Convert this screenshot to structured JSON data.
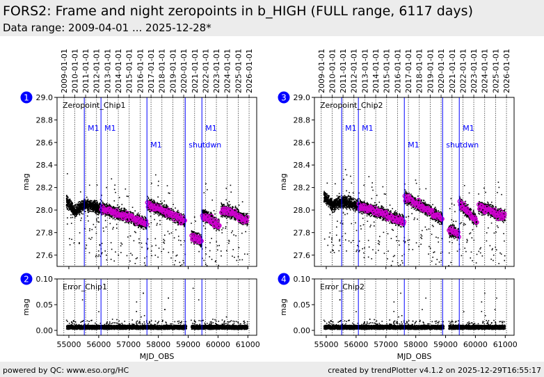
{
  "header": {
    "title": "FORS2: Frame and night zeropoints in b_HIGH (FULL range, 6117 days)",
    "subtitle": "Data range: 2009-04-01 ... 2025-12-28*"
  },
  "footer": {
    "left": "powered by QC: www.eso.org/HC",
    "right": "created by trendPlotter v4.1.2 on 2025-12-29T16:55:17"
  },
  "colors": {
    "frame": "#000000",
    "night": "#cc00cc",
    "event": "#0000ff",
    "badge": "#0000ff"
  },
  "date_ticks": [
    "2009-01-01",
    "2010-01-01",
    "2011-01-01",
    "2012-01-01",
    "2013-01-01",
    "2014-01-01",
    "2015-01-01",
    "2016-01-01",
    "2017-01-01",
    "2018-01-01",
    "2019-01-01",
    "2020-01-01",
    "2021-01-01",
    "2022-01-01",
    "2023-01-01",
    "2024-01-01",
    "2025-01-01",
    "2026-01-01"
  ],
  "events": [
    {
      "mjd": 55517,
      "label": "M1",
      "row": 0
    },
    {
      "mjd": 56077,
      "label": "M1",
      "row": 0
    },
    {
      "mjd": 57617,
      "label": "M1",
      "row": 1
    },
    {
      "mjd": 58900,
      "label": "shutdwn",
      "row": 1
    },
    {
      "mjd": 59459,
      "label": "M1",
      "row": 0
    }
  ],
  "chart_data": [
    {
      "id": "1",
      "type": "scatter",
      "label": "Zeropoint_Chip1",
      "ylabel": "mag",
      "xlim": [
        54604,
        61296
      ],
      "ylim": [
        27.5,
        29.0
      ],
      "yticks": [
        "27.6",
        "27.8",
        "28.0",
        "28.2",
        "28.4",
        "28.6",
        "28.8",
        "29.0"
      ],
      "trend": [
        [
          54920,
          55200,
          28.08,
          27.99
        ],
        [
          55200,
          55517,
          27.98,
          28.05
        ],
        [
          55517,
          56077,
          28.05,
          28.02
        ],
        [
          56077,
          57617,
          28.02,
          27.88
        ],
        [
          57617,
          58900,
          28.06,
          27.9
        ],
        [
          59100,
          59459,
          27.77,
          27.73
        ],
        [
          59459,
          60050,
          27.97,
          27.86
        ],
        [
          60100,
          60700,
          28.0,
          27.96
        ],
        [
          60700,
          61000,
          27.93,
          27.92
        ]
      ],
      "night_from": 56077
    },
    {
      "id": "2",
      "type": "scatter",
      "label": "Error_Chip1",
      "ylabel": "mag",
      "xlabel": "MJD_OBS",
      "xlim": [
        54604,
        61296
      ],
      "ylim": [
        -0.0095,
        0.1
      ],
      "yticks": [
        "0.00",
        "0.05",
        "0.10"
      ],
      "xticks": [
        "55000",
        "56000",
        "57000",
        "58000",
        "59000",
        "60000",
        "61000"
      ],
      "trend": [
        [
          54920,
          58950,
          0.005,
          0.006
        ],
        [
          59100,
          61000,
          0.005,
          0.006
        ]
      ]
    },
    {
      "id": "3",
      "type": "scatter",
      "label": "Zeropoint_Chip2",
      "ylabel": "mag",
      "xlim": [
        54604,
        61296
      ],
      "ylim": [
        27.5,
        29.0
      ],
      "yticks": [
        "27.6",
        "27.8",
        "28.0",
        "28.2",
        "28.4",
        "28.6",
        "28.8",
        "29.0"
      ],
      "trend": [
        [
          54920,
          55200,
          28.12,
          28.05
        ],
        [
          55200,
          55517,
          28.04,
          28.08
        ],
        [
          55517,
          56077,
          28.08,
          28.04
        ],
        [
          56077,
          57617,
          28.04,
          27.9
        ],
        [
          57617,
          58900,
          28.12,
          27.92
        ],
        [
          59100,
          59459,
          27.82,
          27.79
        ],
        [
          59459,
          60050,
          28.06,
          27.9
        ],
        [
          60100,
          60700,
          28.03,
          27.98
        ],
        [
          60700,
          61000,
          27.96,
          27.95
        ]
      ],
      "night_from": 56077
    },
    {
      "id": "4",
      "type": "scatter",
      "label": "Error_Chip2",
      "ylabel": "mag",
      "xlabel": "MJD_OBS",
      "xlim": [
        54604,
        61296
      ],
      "ylim": [
        -0.0095,
        0.1
      ],
      "yticks": [
        "0.00",
        "0.05",
        "0.10"
      ],
      "xticks": [
        "55000",
        "56000",
        "57000",
        "58000",
        "59000",
        "60000",
        "61000"
      ],
      "trend": [
        [
          54920,
          58950,
          0.005,
          0.006
        ],
        [
          59100,
          61000,
          0.005,
          0.006
        ]
      ]
    }
  ]
}
